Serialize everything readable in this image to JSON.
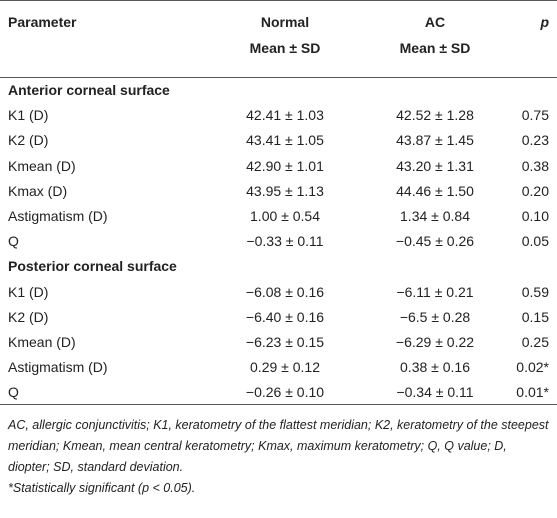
{
  "table": {
    "header": {
      "parameter": "Parameter",
      "normal": [
        "Normal",
        "Mean ± SD"
      ],
      "ac": [
        "AC",
        "Mean ± SD"
      ],
      "p": "p"
    },
    "sections": [
      {
        "title": "Anterior corneal surface",
        "rows": [
          [
            "K1 (D)",
            "42.41 ± 1.03",
            "42.52 ± 1.28",
            "0.75"
          ],
          [
            "K2 (D)",
            "43.41 ± 1.05",
            "43.87 ± 1.45",
            "0.23"
          ],
          [
            "Kmean (D)",
            "42.90 ± 1.01",
            "43.20 ± 1.31",
            "0.38"
          ],
          [
            "Kmax (D)",
            "43.95 ± 1.13",
            "44.46 ± 1.50",
            "0.20"
          ],
          [
            "Astigmatism (D)",
            "1.00 ± 0.54",
            "1.34 ± 0.84",
            "0.10"
          ],
          [
            "Q",
            "−0.33 ± 0.11",
            "−0.45 ± 0.26",
            "0.05"
          ]
        ]
      },
      {
        "title": "Posterior corneal surface",
        "rows": [
          [
            "K1 (D)",
            "−6.08 ± 0.16",
            "−6.11 ± 0.21",
            "0.59"
          ],
          [
            "K2 (D)",
            "−6.40 ± 0.16",
            "−6.5 ± 0.28",
            "0.15"
          ],
          [
            "Kmean (D)",
            "−6.23 ± 0.15",
            "−6.29 ± 0.22",
            "0.25"
          ],
          [
            "Astigmatism (D)",
            "0.29 ± 0.12",
            "0.38 ± 0.16",
            "0.02*"
          ],
          [
            "Q",
            "−0.26 ± 0.10",
            "−0.34 ± 0.11",
            "0.01*"
          ]
        ]
      }
    ]
  },
  "footnotes": [
    "AC, allergic conjunctivitis; K1, keratometry of the flattest meridian; K2, keratometry of the steepest meridian; Kmean, mean central keratometry; Kmax, maximum keratometry; Q, Q value; D, diopter; SD, standard deviation.",
    "*Statistically significant (p < 0.05)."
  ]
}
